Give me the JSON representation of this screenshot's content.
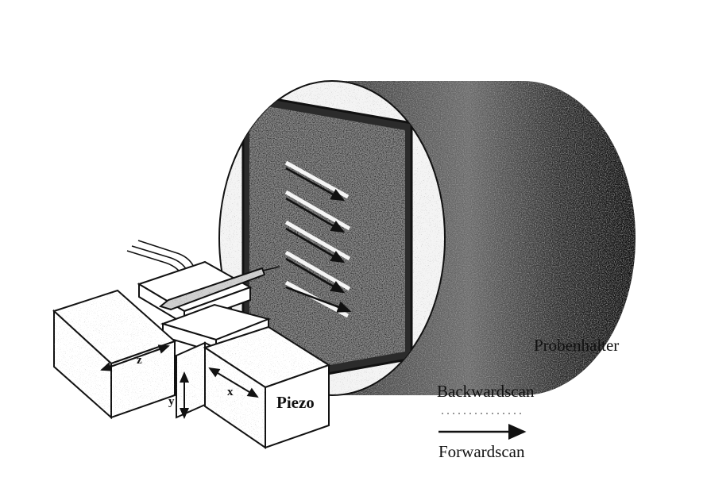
{
  "labels": {
    "probenhalter": "Probenhalter",
    "backwardscan": "Backwardscan",
    "forwardscan": "Forwardscan",
    "piezo": "Piezo",
    "axis_x": "x",
    "axis_y": "y",
    "axis_z": "z"
  },
  "colors": {
    "ink": "#111111",
    "background": "#ffffff",
    "cylinder_dark": "#1a1a1a",
    "speckle_mid": "#8a8a8a",
    "block_fill": "#ffffff"
  },
  "icons": {
    "forward_arrow": "arrow-right-icon",
    "backward_arrow": "dotted-arrow-left-icon"
  }
}
